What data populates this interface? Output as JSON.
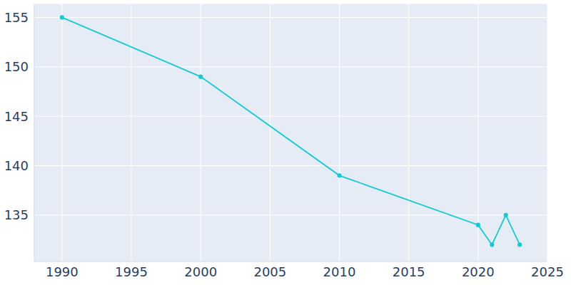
{
  "chart_data": {
    "type": "line",
    "x": [
      1990,
      2000,
      2010,
      2020,
      2021,
      2022,
      2023
    ],
    "values": [
      155,
      149,
      139,
      134,
      132,
      135,
      132
    ],
    "color": "#17c9d0",
    "xlim": [
      1988,
      2025
    ],
    "xticks": [
      1990,
      1995,
      2000,
      2005,
      2010,
      2015,
      2020,
      2025
    ],
    "ylim": [
      130.3,
      156.4
    ],
    "yticks": [
      135,
      140,
      145,
      150,
      155
    ],
    "grid": true
  }
}
